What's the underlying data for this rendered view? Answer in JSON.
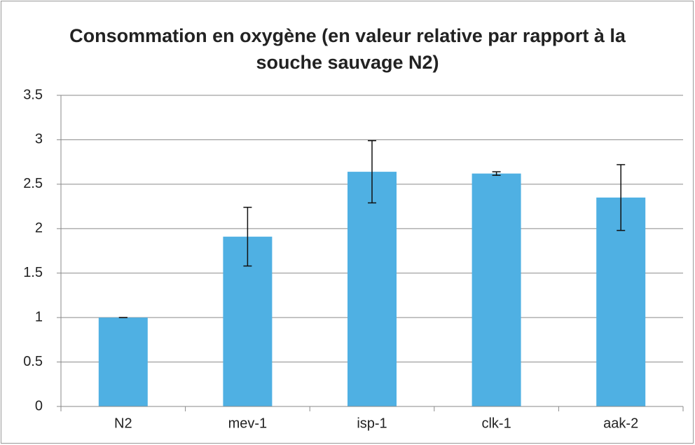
{
  "chart_data": {
    "type": "bar",
    "title": "Consommation en oxygène (en valeur relative par rapport à la souche sauvage N2)",
    "categories": [
      "N2",
      "mev-1",
      "isp-1",
      "clk-1",
      "aak-2"
    ],
    "series": [
      {
        "name": null,
        "color": "#4fb0e3",
        "values": [
          1.0,
          1.91,
          2.64,
          2.62,
          2.35
        ],
        "errors": [
          0.0,
          0.33,
          0.35,
          0.02,
          0.37
        ]
      }
    ],
    "ylim": [
      0,
      3.5
    ],
    "yticks": [
      0,
      0.5,
      1,
      1.5,
      2,
      2.5,
      3,
      3.5
    ],
    "grid": true
  }
}
